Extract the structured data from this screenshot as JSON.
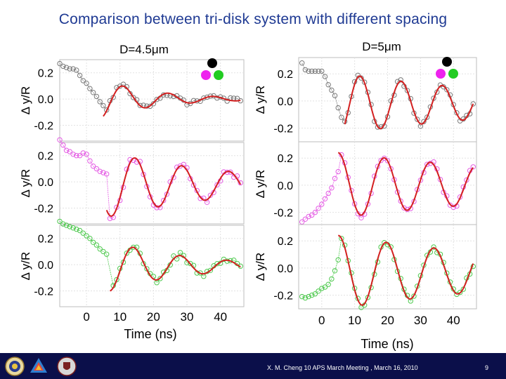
{
  "slide": {
    "title": "Comparison between tri-disk system with different spacing",
    "footer": "X. M. Cheng 10 APS March Meeting , March 16, 2010",
    "page_number": "9"
  },
  "colors": {
    "fit": "#d42020",
    "row1": "#7a7a7a",
    "row2": "#e45ce4",
    "row3": "#4ec94e",
    "black_disk": "#000000",
    "magenta_disk": "#ee22ee",
    "green_disk": "#22cc22",
    "footer_bg": "#0b0f4a",
    "title": "#1f3a93"
  },
  "chart_data": [
    {
      "type": "scatter",
      "title": "D=4.5μm",
      "xlabel": "Time (ns)",
      "ylabel": "Δ y/R",
      "x_ticks": [
        "0",
        "10",
        "20",
        "30",
        "40"
      ],
      "y_ticks": [
        "0.2",
        "0.0",
        "-0.2"
      ],
      "xlim": [
        -8,
        47
      ],
      "ylim": [
        -0.32,
        0.3
      ],
      "grid": true,
      "legend": "disk icons (black, magenta, green) top-right of first panel",
      "panels": [
        {
          "series": "black",
          "pre": [
            [
              -8,
              0.27
            ],
            [
              -7,
              0.25
            ],
            [
              -6,
              0.24
            ],
            [
              -5,
              0.23
            ],
            [
              -4,
              0.23
            ],
            [
              -3,
              0.22
            ],
            [
              -2,
              0.18
            ],
            [
              -1,
              0.14
            ],
            [
              0,
              0.12
            ],
            [
              1,
              0.08
            ],
            [
              2,
              0.05
            ],
            [
              3,
              0.02
            ],
            [
              4,
              -0.02
            ],
            [
              5,
              -0.05
            ]
          ],
          "osc": {
            "start": 5,
            "end": 46,
            "amp": 0.14,
            "period": 13.5,
            "tau": 17,
            "phase0": 7.6,
            "offset": 0.0
          },
          "noise": 0.022
        },
        {
          "series": "magenta",
          "pre": [
            [
              -8,
              0.32
            ],
            [
              -7,
              0.28
            ],
            [
              -6,
              0.24
            ],
            [
              -5,
              0.23
            ],
            [
              -4,
              0.21
            ],
            [
              -3,
              0.2
            ],
            [
              -2,
              0.2
            ],
            [
              -1,
              0.22
            ],
            [
              0,
              0.21
            ],
            [
              1,
              0.16
            ],
            [
              2,
              0.12
            ],
            [
              3,
              0.1
            ],
            [
              4,
              0.08
            ],
            [
              5,
              0.07
            ],
            [
              6,
              0.06
            ]
          ],
          "osc": {
            "start": 6,
            "end": 46,
            "amp": 0.25,
            "period": 14,
            "tau": 40,
            "phase0": 11,
            "offset": -0.02
          },
          "noise": 0.025
        },
        {
          "series": "green",
          "pre": [
            [
              -8,
              0.33
            ],
            [
              -7,
              0.31
            ],
            [
              -6,
              0.3
            ],
            [
              -5,
              0.29
            ],
            [
              -4,
              0.28
            ],
            [
              -3,
              0.27
            ],
            [
              -2,
              0.26
            ],
            [
              -1,
              0.24
            ],
            [
              0,
              0.22
            ],
            [
              1,
              0.2
            ],
            [
              2,
              0.17
            ],
            [
              3,
              0.15
            ],
            [
              4,
              0.12
            ],
            [
              5,
              0.1
            ],
            [
              6,
              0.08
            ]
          ],
          "osc": {
            "start": 7,
            "end": 46,
            "amp": 0.19,
            "period": 14,
            "tau": 24,
            "phase0": 10.5,
            "offset": -0.01
          },
          "noise": 0.024
        }
      ]
    },
    {
      "type": "scatter",
      "title": "D=5μm",
      "xlabel": "Time (ns)",
      "ylabel": "Δ y/R",
      "x_ticks": [
        "0",
        "10",
        "20",
        "30",
        "40"
      ],
      "y_ticks": [
        "0.2",
        "0.0",
        "-0.2"
      ],
      "xlim": [
        -7,
        47
      ],
      "ylim": [
        -0.3,
        0.32
      ],
      "grid": true,
      "legend": "disk icons (black, magenta, green) top-right of first panel",
      "panels": [
        {
          "series": "black",
          "pre": [
            [
              -6,
              0.28
            ],
            [
              -5,
              0.23
            ],
            [
              -4,
              0.22
            ],
            [
              -3,
              0.22
            ],
            [
              -2,
              0.22
            ],
            [
              -1,
              0.22
            ],
            [
              0,
              0.22
            ],
            [
              1,
              0.18
            ],
            [
              2,
              0.12
            ],
            [
              3,
              0.08
            ],
            [
              4,
              0.04
            ],
            [
              5,
              -0.05
            ],
            [
              6,
              -0.12
            ],
            [
              7,
              -0.15
            ]
          ],
          "osc": {
            "start": 7,
            "end": 46,
            "amp": 0.22,
            "period": 12.5,
            "tau": 60,
            "phase0": 8.5,
            "offset": -0.02
          },
          "noise": 0.022
        },
        {
          "series": "magenta",
          "pre": [
            [
              -6,
              -0.27
            ],
            [
              -5,
              -0.25
            ],
            [
              -4,
              -0.23
            ],
            [
              -3,
              -0.22
            ],
            [
              -2,
              -0.2
            ],
            [
              -1,
              -0.17
            ],
            [
              0,
              -0.14
            ],
            [
              1,
              -0.1
            ],
            [
              2,
              -0.06
            ],
            [
              3,
              -0.02
            ],
            [
              4,
              0.05
            ],
            [
              5,
              0.1
            ]
          ],
          "osc": {
            "start": 5,
            "end": 46,
            "amp": 0.24,
            "period": 14,
            "tau": 80,
            "phase0": 1.5,
            "offset": 0.0
          },
          "noise": 0.022
        },
        {
          "series": "green",
          "pre": [
            [
              -6,
              -0.21
            ],
            [
              -5,
              -0.22
            ],
            [
              -4,
              -0.21
            ],
            [
              -3,
              -0.2
            ],
            [
              -2,
              -0.19
            ],
            [
              -1,
              -0.17
            ],
            [
              0,
              -0.15
            ],
            [
              1,
              -0.14
            ],
            [
              2,
              -0.12
            ],
            [
              3,
              -0.08
            ],
            [
              4,
              -0.02
            ],
            [
              5,
              0.06
            ]
          ],
          "osc": {
            "start": 5,
            "end": 46,
            "amp": 0.27,
            "period": 14.5,
            "tau": 70,
            "phase0": 1.5,
            "offset": -0.03
          },
          "noise": 0.022
        }
      ]
    }
  ]
}
